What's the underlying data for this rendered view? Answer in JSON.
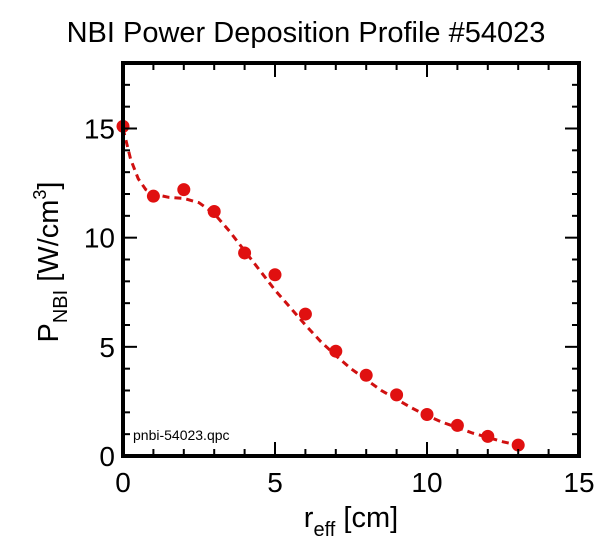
{
  "chart_data": {
    "type": "scatter",
    "title": "NBI Power Deposition Profile #54023",
    "xlabel": {
      "main": "r",
      "sub": "eff",
      "unit": " [cm]"
    },
    "ylabel": {
      "main": "P",
      "sub": "NBI",
      "unit": " [W/cm",
      "sup": "3",
      "close": "]"
    },
    "xlim": [
      0,
      15
    ],
    "ylim": [
      0,
      18
    ],
    "xticks": [
      0,
      5,
      10,
      15
    ],
    "yticks": [
      0,
      5,
      10,
      15
    ],
    "annotation": "pnbi-54023.qpc",
    "series": [
      {
        "style": "markers",
        "color": "#e01010",
        "x": [
          0,
          1,
          2,
          3,
          4,
          5,
          6,
          7,
          8,
          9,
          10,
          11,
          12,
          13
        ],
        "y": [
          15.1,
          11.9,
          12.2,
          11.2,
          9.3,
          8.3,
          6.5,
          4.8,
          3.7,
          2.8,
          1.9,
          1.4,
          0.9,
          0.5
        ]
      },
      {
        "style": "dashed-line",
        "color": "#d01010",
        "x": [
          0,
          0.25,
          0.5,
          0.75,
          1,
          1.5,
          2,
          2.5,
          3,
          3.5,
          4,
          4.5,
          5,
          5.5,
          6,
          6.5,
          7,
          7.5,
          8,
          8.5,
          9,
          9.5,
          10,
          10.5,
          11,
          11.5,
          12,
          12.5,
          13
        ],
        "y": [
          15.0,
          13.6,
          12.7,
          12.2,
          12.0,
          11.85,
          11.8,
          11.6,
          11.1,
          10.3,
          9.4,
          8.5,
          7.6,
          6.8,
          6.0,
          5.25,
          4.6,
          4.0,
          3.5,
          3.0,
          2.6,
          2.2,
          1.85,
          1.55,
          1.3,
          1.05,
          0.85,
          0.65,
          0.5
        ]
      }
    ]
  }
}
